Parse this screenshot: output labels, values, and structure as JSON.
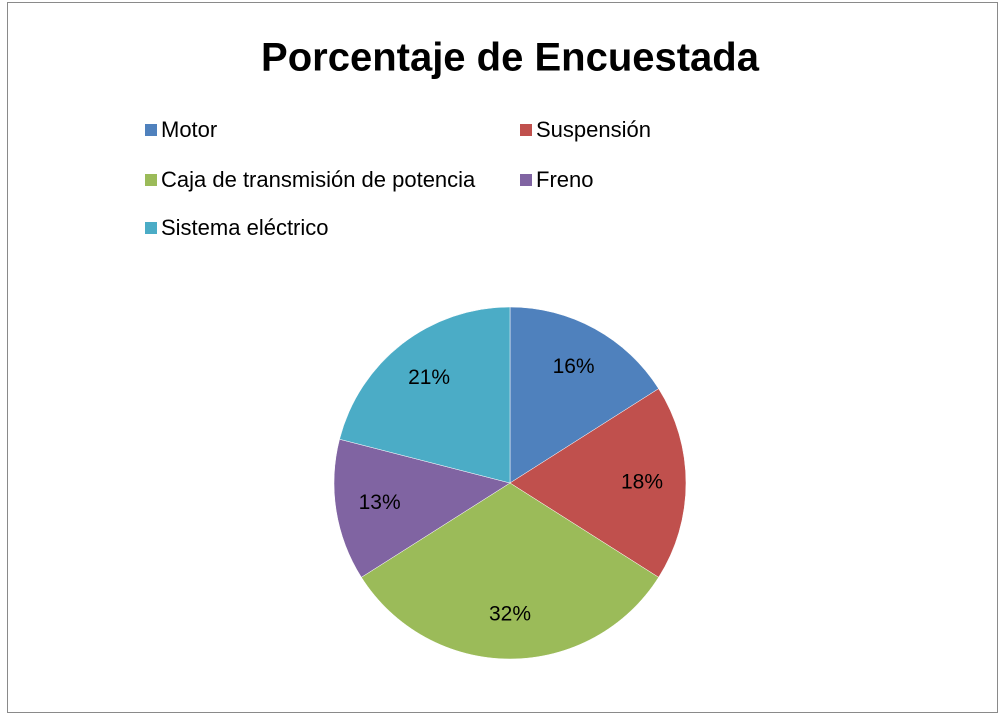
{
  "chart_data": {
    "type": "pie",
    "title": "Porcentaje de Encuestada",
    "categories": [
      "Motor",
      "Suspensión",
      "Caja de transmisión de potencia",
      "Freno",
      "Sistema eléctrico"
    ],
    "values": [
      16,
      18,
      32,
      13,
      21
    ],
    "value_labels": [
      "16%",
      "18%",
      "32%",
      "13%",
      "21%"
    ],
    "colors": [
      "#4f81bd",
      "#c0504d",
      "#9bbb59",
      "#8064a2",
      "#4bacc6"
    ],
    "legend": "top"
  }
}
